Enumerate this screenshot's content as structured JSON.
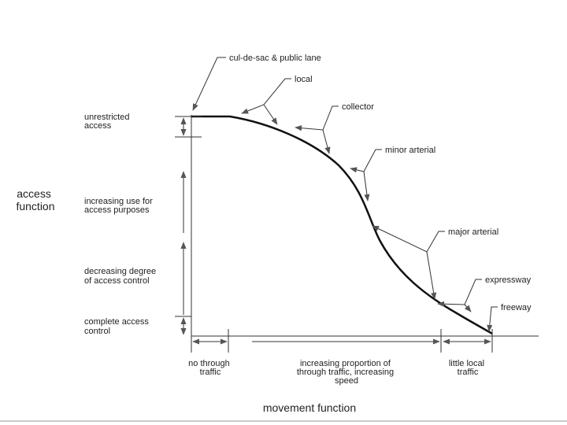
{
  "title": {
    "lines": [
      "access",
      "function"
    ]
  },
  "x_label": "movement function",
  "curve_labels": [
    "cul-de-sac & public lane",
    "local",
    "collector",
    "minor arterial",
    "major arterial",
    "expressway",
    "freeway"
  ],
  "left_labels": [
    {
      "lines": [
        "unrestricted",
        "access"
      ]
    },
    {
      "lines": [
        "increasing use for",
        "access purposes"
      ]
    },
    {
      "lines": [
        "decreasing degree",
        "of access control"
      ]
    },
    {
      "lines": [
        "complete access",
        "control"
      ]
    }
  ],
  "bottom_labels": [
    {
      "lines": [
        "no through",
        "traffic"
      ]
    },
    {
      "lines": [
        "increasing proportion of",
        "through traffic, increasing",
        "speed"
      ]
    },
    {
      "lines": [
        "little local",
        "traffic"
      ]
    }
  ]
}
